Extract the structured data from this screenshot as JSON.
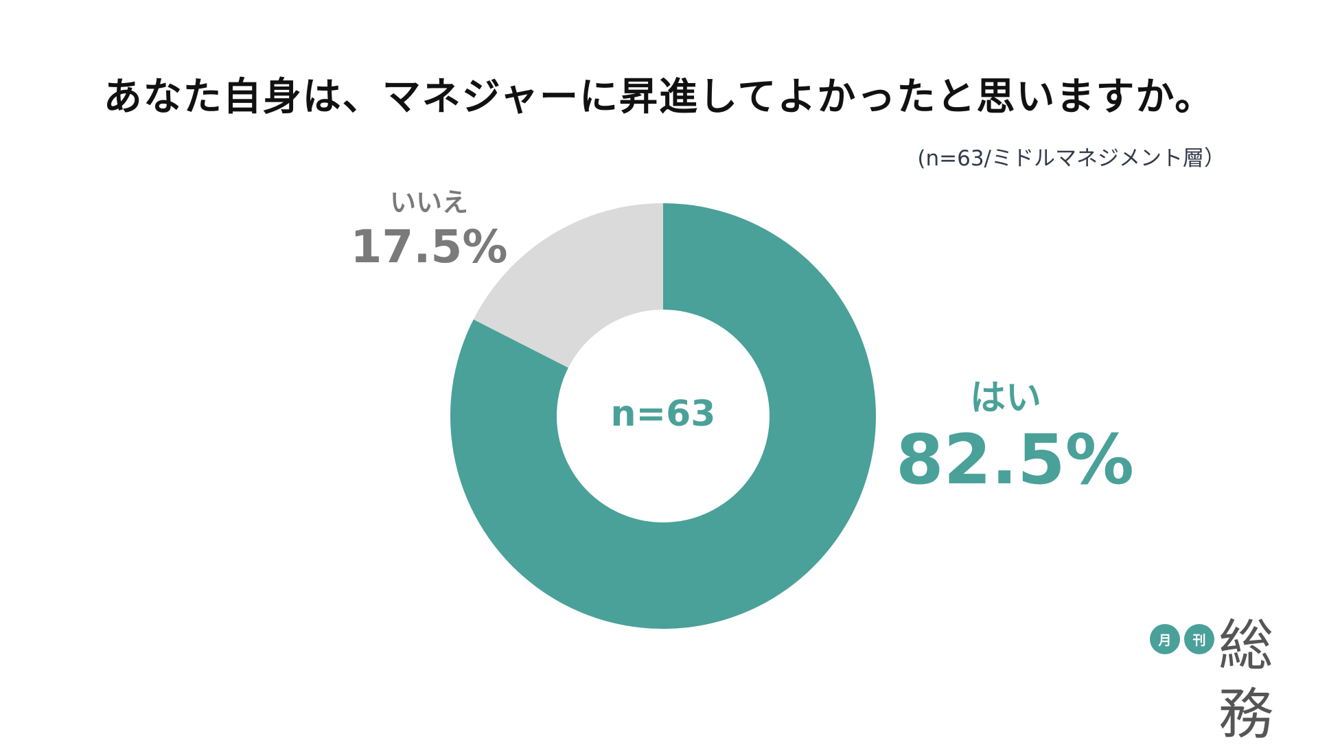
{
  "title": "あなた自身は、マネジャーに昇進してよかったと思いますか。",
  "sample_note": "(n=63/ミドルマネジメント層）",
  "logo": {
    "badge1": "月",
    "badge2": "刊",
    "text": "総務"
  },
  "colors": {
    "yes": "#4aa199",
    "no": "#dadada",
    "no_text": "#7a7a7a",
    "center_text": "#4aa199"
  },
  "chart_data": {
    "type": "pie",
    "variant": "donut",
    "center_label": "n=63",
    "slices": [
      {
        "name": "はい",
        "value": 82.5,
        "label": "82.5%",
        "color": "#4aa199"
      },
      {
        "name": "いいえ",
        "value": 17.5,
        "label": "17.5%",
        "color": "#dadada"
      }
    ],
    "start_angle": "12 o'clock",
    "direction": "clockwise"
  }
}
